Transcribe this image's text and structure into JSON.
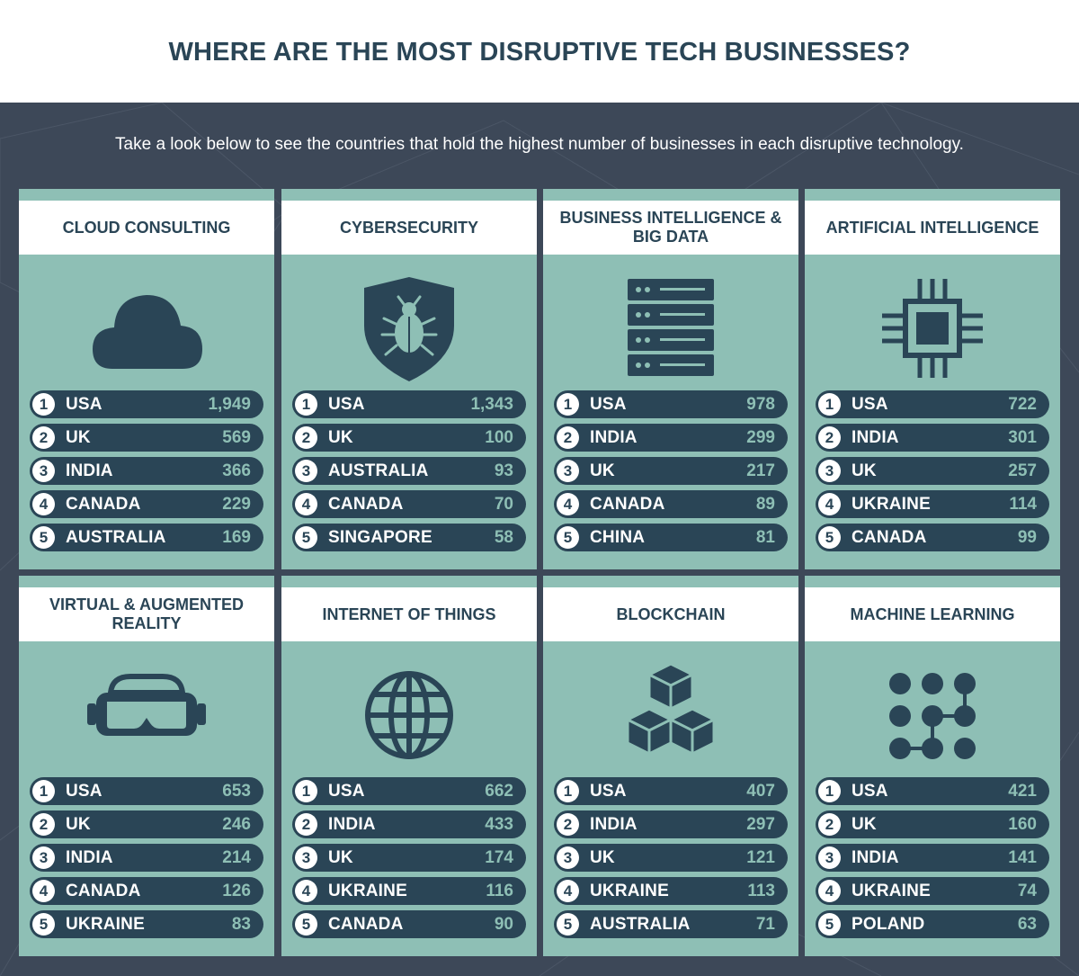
{
  "title": "WHERE ARE THE MOST DISRUPTIVE TECH BUSINESSES?",
  "subtitle": "Take a look below to see the countries that hold the highest number of businesses in each disruptive technology.",
  "colors": {
    "dark_bg": "#3d4858",
    "card_bg": "#8ebfb5",
    "navy": "#2a4556",
    "white": "#ffffff"
  },
  "cards": [
    {
      "title": "CLOUD CONSULTING",
      "icon": "cloud-icon",
      "rows": [
        {
          "rank": "1",
          "country": "USA",
          "value": "1,949"
        },
        {
          "rank": "2",
          "country": "UK",
          "value": "569"
        },
        {
          "rank": "3",
          "country": "INDIA",
          "value": "366"
        },
        {
          "rank": "4",
          "country": "CANADA",
          "value": "229"
        },
        {
          "rank": "5",
          "country": "AUSTRALIA",
          "value": "169"
        }
      ]
    },
    {
      "title": "CYBERSECURITY",
      "icon": "shield-bug-icon",
      "rows": [
        {
          "rank": "1",
          "country": "USA",
          "value": "1,343"
        },
        {
          "rank": "2",
          "country": "UK",
          "value": "100"
        },
        {
          "rank": "3",
          "country": "AUSTRALIA",
          "value": "93"
        },
        {
          "rank": "4",
          "country": "CANADA",
          "value": "70"
        },
        {
          "rank": "5",
          "country": "SINGAPORE",
          "value": "58"
        }
      ]
    },
    {
      "title": "BUSINESS INTELLIGENCE & BIG DATA",
      "icon": "server-icon",
      "rows": [
        {
          "rank": "1",
          "country": "USA",
          "value": "978"
        },
        {
          "rank": "2",
          "country": "INDIA",
          "value": "299"
        },
        {
          "rank": "3",
          "country": "UK",
          "value": "217"
        },
        {
          "rank": "4",
          "country": "CANADA",
          "value": "89"
        },
        {
          "rank": "5",
          "country": "CHINA",
          "value": "81"
        }
      ]
    },
    {
      "title": "ARTIFICIAL INTELLIGENCE",
      "icon": "chip-icon",
      "rows": [
        {
          "rank": "1",
          "country": "USA",
          "value": "722"
        },
        {
          "rank": "2",
          "country": "INDIA",
          "value": "301"
        },
        {
          "rank": "3",
          "country": "UK",
          "value": "257"
        },
        {
          "rank": "4",
          "country": "UKRAINE",
          "value": "114"
        },
        {
          "rank": "5",
          "country": "CANADA",
          "value": "99"
        }
      ]
    },
    {
      "title": "VIRTUAL & AUGMENTED REALITY",
      "icon": "vr-headset-icon",
      "rows": [
        {
          "rank": "1",
          "country": "USA",
          "value": "653"
        },
        {
          "rank": "2",
          "country": "UK",
          "value": "246"
        },
        {
          "rank": "3",
          "country": "INDIA",
          "value": "214"
        },
        {
          "rank": "4",
          "country": "CANADA",
          "value": "126"
        },
        {
          "rank": "5",
          "country": "UKRAINE",
          "value": "83"
        }
      ]
    },
    {
      "title": "INTERNET OF THINGS",
      "icon": "globe-icon",
      "rows": [
        {
          "rank": "1",
          "country": "USA",
          "value": "662"
        },
        {
          "rank": "2",
          "country": "INDIA",
          "value": "433"
        },
        {
          "rank": "3",
          "country": "UK",
          "value": "174"
        },
        {
          "rank": "4",
          "country": "UKRAINE",
          "value": "116"
        },
        {
          "rank": "5",
          "country": "CANADA",
          "value": "90"
        }
      ]
    },
    {
      "title": "BLOCKCHAIN",
      "icon": "cubes-icon",
      "rows": [
        {
          "rank": "1",
          "country": "USA",
          "value": "407"
        },
        {
          "rank": "2",
          "country": "INDIA",
          "value": "297"
        },
        {
          "rank": "3",
          "country": "UK",
          "value": "121"
        },
        {
          "rank": "4",
          "country": "UKRAINE",
          "value": "113"
        },
        {
          "rank": "5",
          "country": "AUSTRALIA",
          "value": "71"
        }
      ]
    },
    {
      "title": "MACHINE LEARNING",
      "icon": "dot-grid-icon",
      "rows": [
        {
          "rank": "1",
          "country": "USA",
          "value": "421"
        },
        {
          "rank": "2",
          "country": "UK",
          "value": "160"
        },
        {
          "rank": "3",
          "country": "INDIA",
          "value": "141"
        },
        {
          "rank": "4",
          "country": "UKRAINE",
          "value": "74"
        },
        {
          "rank": "5",
          "country": "POLAND",
          "value": "63"
        }
      ]
    }
  ]
}
